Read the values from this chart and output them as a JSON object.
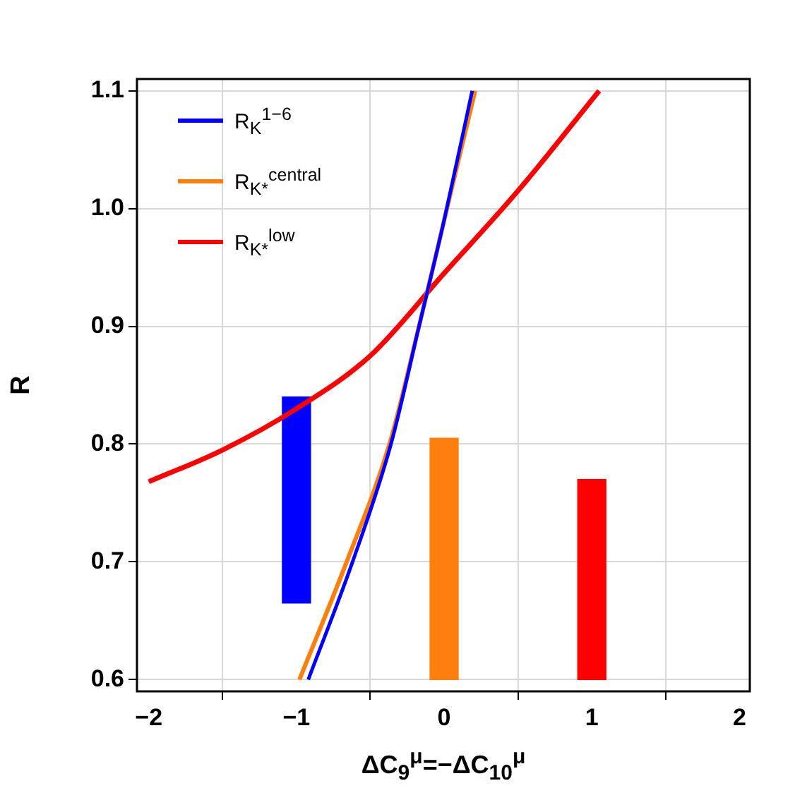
{
  "chart_data": {
    "type": "line",
    "xlabel": "ΔC$_{9}$$^{μ}$=−ΔC$_{10}$$^{μ}$",
    "ylabel": "R",
    "xlim": [
      -2.08,
      2.07
    ],
    "xticks": [
      {
        "value": -2,
        "label": "−2"
      },
      {
        "value": -1,
        "label": "−1"
      },
      0,
      1,
      2
    ],
    "ylim": [
      0.59,
      1.11
    ],
    "yticks": [
      0.6,
      0.7,
      0.8,
      0.9,
      {
        "value": 1.0,
        "label": "1.0"
      },
      1.1
    ],
    "grid": true,
    "legend": "top left",
    "marker": "none",
    "line_style": "solid",
    "series": [
      {
        "name": "R$_{K}$$^{1−6}$",
        "color": "#0000ff",
        "x": [
          -0.92,
          -0.62,
          -0.36,
          -0.17,
          0,
          0.19
        ],
        "values": [
          0.6,
          0.7,
          0.8,
          0.9,
          0.99,
          1.1
        ]
      },
      {
        "name": "R$_{K*}$$^{central}$",
        "color": "#ff7f0e",
        "x": [
          -0.98,
          -0.66,
          -0.37,
          -0.17,
          0,
          0.21
        ],
        "values": [
          0.6,
          0.7,
          0.8,
          0.9,
          0.99,
          1.1
        ]
      },
      {
        "name": "R$_{K*}$$^{low}$",
        "color": "#ff0000",
        "x": [
          -2,
          -1.5,
          -1,
          -0.5,
          0,
          0.5,
          1.05
        ],
        "values": [
          0.768,
          0.795,
          0.83,
          0.875,
          0.945,
          1.015,
          1.1
        ]
      },
      {
        "type": "bar",
        "x": [
          -1,
          0,
          1
        ],
        "base": [
          0.665,
          0.6,
          0.6
        ],
        "values": [
          0.175,
          0.205,
          0.17
        ],
        "colors": [
          "#0000ff",
          "#ff7f0e",
          "#ff0000"
        ]
      }
    ]
  }
}
